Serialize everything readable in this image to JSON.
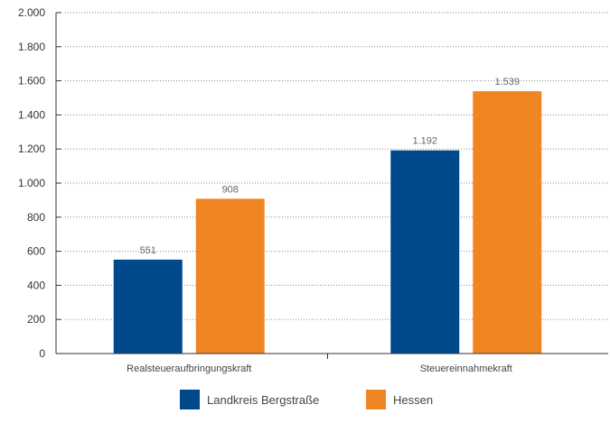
{
  "chart_data": {
    "type": "bar",
    "categories": [
      "Realsteueraufbringungskraft",
      "Steuereinnahmekraft"
    ],
    "series": [
      {
        "name": "Landkreis Bergstraße",
        "values": [
          551,
          1192
        ],
        "labels": [
          "551",
          "1.192"
        ],
        "color": "#004a8b"
      },
      {
        "name": "Hessen",
        "values": [
          908,
          1539
        ],
        "labels": [
          "908",
          "1.539"
        ],
        "color": "#ef8623"
      }
    ],
    "ylim": [
      0,
      2000
    ],
    "yticks": [
      0,
      200,
      400,
      600,
      800,
      1000,
      1200,
      1400,
      1600,
      1800,
      2000
    ],
    "ytick_labels": [
      "0",
      "200",
      "400",
      "600",
      "800",
      "1.000",
      "1.200",
      "1.400",
      "1.600",
      "1.800",
      "2.000"
    ],
    "grid": true,
    "grid_style": "dotted",
    "legend": "bottom-center",
    "title": "",
    "xlabel": "",
    "ylabel": ""
  }
}
